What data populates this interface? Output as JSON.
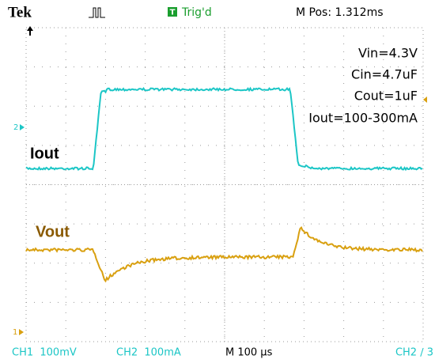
{
  "header": {
    "brand": "Tek",
    "trigger_badge": "T",
    "trigger_status": "Trig'd",
    "position": "M Pos: 1.312ms"
  },
  "annotations": [
    "Vin=4.3V",
    "Cin=4.7uF",
    "Cout=1uF",
    "Iout=100-300mA"
  ],
  "trace_labels": {
    "current": "Iout",
    "voltage": "Vout"
  },
  "markers": {
    "ch2": "2",
    "ch1": "1"
  },
  "footer": {
    "ch1": "CH1  100mV",
    "ch2": "CH2  100mA",
    "timebase": "M 100 µs",
    "trigger": "CH2 ∕ 3"
  }
}
